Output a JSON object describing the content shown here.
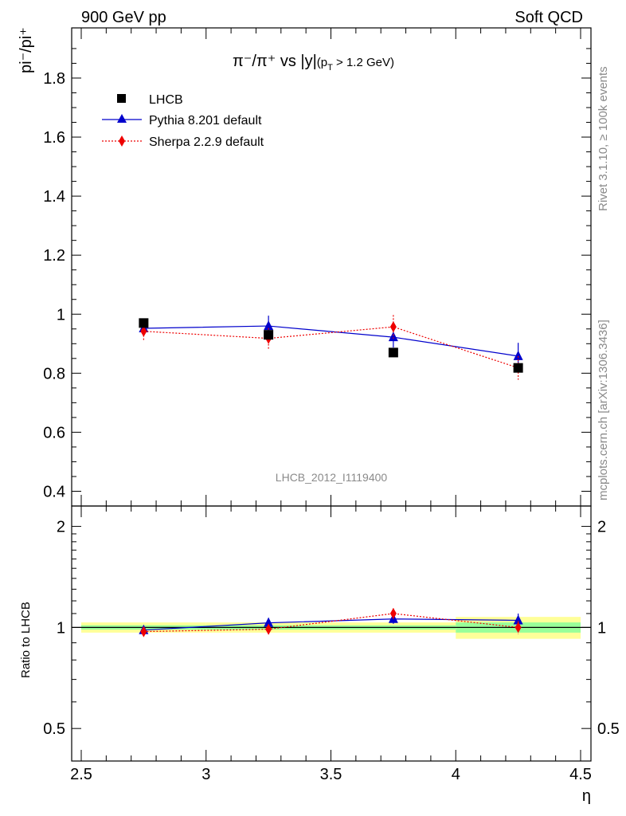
{
  "header": {
    "left": "900 GeV pp",
    "right": "Soft QCD"
  },
  "side": {
    "rivet": "Rivet 3.1.10, ≥ 100k events",
    "url": "mcplots.cern.ch [arXiv:1306.3436]"
  },
  "watermark": "LHCB_2012_I1119400",
  "colors": {
    "data": "#000000",
    "pythia": "#0000cc",
    "sherpa": "#ee0000",
    "band_inner": "#99ff99",
    "band_outer": "#ffff99"
  },
  "chart_data": [
    {
      "type": "line",
      "title": "π⁻/π⁺ vs |y|(p_T > 1.2 GeV)",
      "title_main": "π⁻/π⁺ vs |y|",
      "title_sub": "(p",
      "title_subT": "T",
      "title_sub2": " > 1.2 GeV)",
      "ylabel": "pi⁻/pi⁺",
      "xlim": [
        2.5,
        4.5
      ],
      "ylim": [
        0.35,
        1.97
      ],
      "yticks": [
        "0.4",
        "0.6",
        "0.8",
        "1",
        "1.2",
        "1.4",
        "1.6",
        "1.8"
      ],
      "legend_position": "top-left",
      "series": [
        {
          "name": "LHCB",
          "marker": "square",
          "x": [
            2.75,
            3.25,
            3.75,
            4.25
          ],
          "y": [
            0.97,
            0.93,
            0.87,
            0.818
          ],
          "yerr": [
            0.006,
            0.006,
            0.006,
            0.006
          ]
        },
        {
          "name": "Pythia 8.201 default",
          "marker": "triangle",
          "x": [
            2.75,
            3.25,
            3.75,
            4.25
          ],
          "y": [
            0.952,
            0.96,
            0.922,
            0.858
          ],
          "yerr": [
            0.02,
            0.035,
            0.035,
            0.045
          ]
        },
        {
          "name": "Sherpa 2.2.9 default",
          "marker": "diamond",
          "x": [
            2.75,
            3.25,
            3.75,
            4.25
          ],
          "y": [
            0.942,
            0.918,
            0.957,
            0.818
          ],
          "yerr": [
            0.03,
            0.035,
            0.04,
            0.04
          ]
        }
      ]
    },
    {
      "type": "line",
      "ylabel": "Ratio to LHCB",
      "xlabel": "η",
      "xlim": [
        2.5,
        4.5
      ],
      "ylim": [
        0.4,
        2.3
      ],
      "log_y": true,
      "xticks": [
        "2.5",
        "3",
        "3.5",
        "4",
        "4.5"
      ],
      "yticks": [
        "0.5",
        "1",
        "2"
      ],
      "bands": [
        {
          "x": [
            2.5,
            3.0
          ],
          "inner": [
            0.985,
            1.015
          ],
          "outer": [
            0.965,
            1.035
          ]
        },
        {
          "x": [
            3.0,
            3.5
          ],
          "inner": [
            0.985,
            1.015
          ],
          "outer": [
            0.965,
            1.035
          ]
        },
        {
          "x": [
            3.5,
            4.0
          ],
          "inner": [
            0.985,
            1.015
          ],
          "outer": [
            0.965,
            1.035
          ]
        },
        {
          "x": [
            4.0,
            4.5
          ],
          "inner": [
            0.965,
            1.035
          ],
          "outer": [
            0.925,
            1.075
          ]
        }
      ],
      "series": [
        {
          "name": "Pythia 8.201 default",
          "x": [
            2.75,
            3.25,
            3.75,
            4.25
          ],
          "y": [
            0.982,
            1.032,
            1.06,
            1.05
          ],
          "yerr": [
            0.02,
            0.035,
            0.035,
            0.05
          ]
        },
        {
          "name": "Sherpa 2.2.9 default",
          "x": [
            2.75,
            3.25,
            3.75,
            4.25
          ],
          "y": [
            0.972,
            0.988,
            1.1,
            1.0
          ],
          "yerr": [
            0.03,
            0.035,
            0.04,
            0.045
          ]
        }
      ]
    }
  ]
}
